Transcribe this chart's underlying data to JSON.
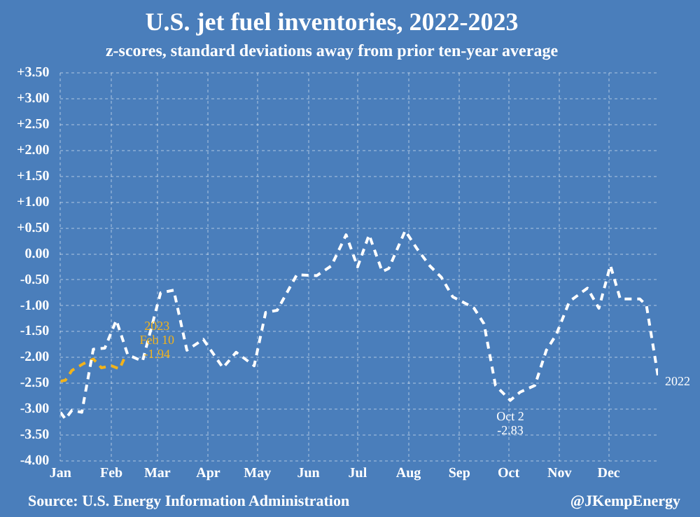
{
  "chart_data": {
    "type": "line",
    "title": "U.S. jet fuel inventories, 2022-2023",
    "subtitle": "z-scores, standard deviations away from prior ten-year average",
    "x": [
      "--01-01",
      "--01-04",
      "--01-08",
      "--01-14",
      "--01-21",
      "--01-28",
      "--02-04",
      "--02-11",
      "--02-20",
      "--03-03",
      "--03-11",
      "--03-19",
      "--03-29",
      "--04-10",
      "--04-18",
      "--04-29",
      "--05-06",
      "--05-13",
      "--05-25",
      "--06-06",
      "--06-15",
      "--06-24",
      "--07-01",
      "--07-08",
      "--07-16",
      "--07-20",
      "--07-30",
      "--08-06",
      "--08-14",
      "--08-21",
      "--08-28",
      "--09-05",
      "--09-10",
      "--09-16",
      "--09-23",
      "--10-02",
      "--10-08",
      "--10-17",
      "--10-24",
      "--10-30",
      "--11-07",
      "--11-18",
      "--11-25",
      "--12-02",
      "--12-08",
      "--12-20",
      "--12-24",
      "--12-31"
    ],
    "series": [
      {
        "name": "2022",
        "color": "#ffffff",
        "values": [
          -3.06,
          -3.19,
          -3.02,
          -3.06,
          -1.84,
          -1.82,
          -1.28,
          -1.95,
          -2.07,
          -0.75,
          -0.7,
          -1.86,
          -1.65,
          -2.2,
          -1.9,
          -2.16,
          -1.13,
          -1.09,
          -0.4,
          -0.42,
          -0.23,
          0.37,
          -0.25,
          0.37,
          -0.34,
          -0.28,
          0.45,
          0.11,
          -0.23,
          -0.45,
          -0.83,
          -0.96,
          -1.05,
          -1.35,
          -2.54,
          -2.83,
          -2.67,
          -2.54,
          -1.86,
          -1.56,
          -0.92,
          -0.66,
          -1.05,
          -0.22,
          -0.87,
          -0.87,
          -1.0,
          -2.36
        ]
      },
      {
        "name": "2023",
        "color": "#f2b31b",
        "x": [
          "--01-01",
          "--01-04",
          "--01-08",
          "--01-15",
          "--01-21",
          "--01-26",
          "--02-01",
          "--02-06",
          "--02-10"
        ],
        "values": [
          -2.46,
          -2.44,
          -2.25,
          -2.12,
          -2.03,
          -2.2,
          -2.16,
          -2.22,
          -1.94
        ]
      }
    ],
    "xlim": [
      "--01-01",
      "--12-31"
    ],
    "xticks": [
      {
        "value": "--01-01",
        "label": "Jan"
      },
      {
        "value": "--02-01",
        "label": "Feb"
      },
      {
        "value": "--03-01",
        "label": "Mar"
      },
      {
        "value": "--04-01",
        "label": "Apr"
      },
      {
        "value": "--05-01",
        "label": "May"
      },
      {
        "value": "--06-01",
        "label": "Jun"
      },
      {
        "value": "--07-01",
        "label": "Jul"
      },
      {
        "value": "--08-01",
        "label": "Aug"
      },
      {
        "value": "--09-01",
        "label": "Sep"
      },
      {
        "value": "--10-01",
        "label": "Oct"
      },
      {
        "value": "--11-01",
        "label": "Nov"
      },
      {
        "value": "--12-01",
        "label": "Dec"
      }
    ],
    "ylim": [
      -4,
      3.5
    ],
    "yticks": [
      {
        "value": -4,
        "label": "-4.00"
      },
      {
        "value": -3.5,
        "label": "-3.50"
      },
      {
        "value": -3,
        "label": "-3.00"
      },
      {
        "value": -2.5,
        "label": "-2.50"
      },
      {
        "value": -2,
        "label": "-2.00"
      },
      {
        "value": -1.5,
        "label": "-1.50"
      },
      {
        "value": -1,
        "label": "-1.00"
      },
      {
        "value": -0.5,
        "label": "-0.50"
      },
      {
        "value": 0,
        "label": "0.00"
      },
      {
        "value": 0.5,
        "label": "+0.50"
      },
      {
        "value": 1,
        "label": "+1.00"
      },
      {
        "value": 1.5,
        "label": "+1.50"
      },
      {
        "value": 2,
        "label": "+2.00"
      },
      {
        "value": 2.5,
        "label": "+2.50"
      },
      {
        "value": 3,
        "label": "+3.00"
      },
      {
        "value": 3.5,
        "label": "+3.50"
      }
    ],
    "grid": true,
    "legend": false,
    "marker": "none",
    "line_style": "dashed",
    "annotations": [
      {
        "text": "Oct 2\n-2.83",
        "x": "--10-02",
        "y": -2.83
      },
      {
        "text": "Feb 10\n-1.94",
        "x": "--02-10",
        "y": -1.94
      },
      "Source: U.S. Energy Information Administration",
      "@JKempEnergy"
    ]
  }
}
